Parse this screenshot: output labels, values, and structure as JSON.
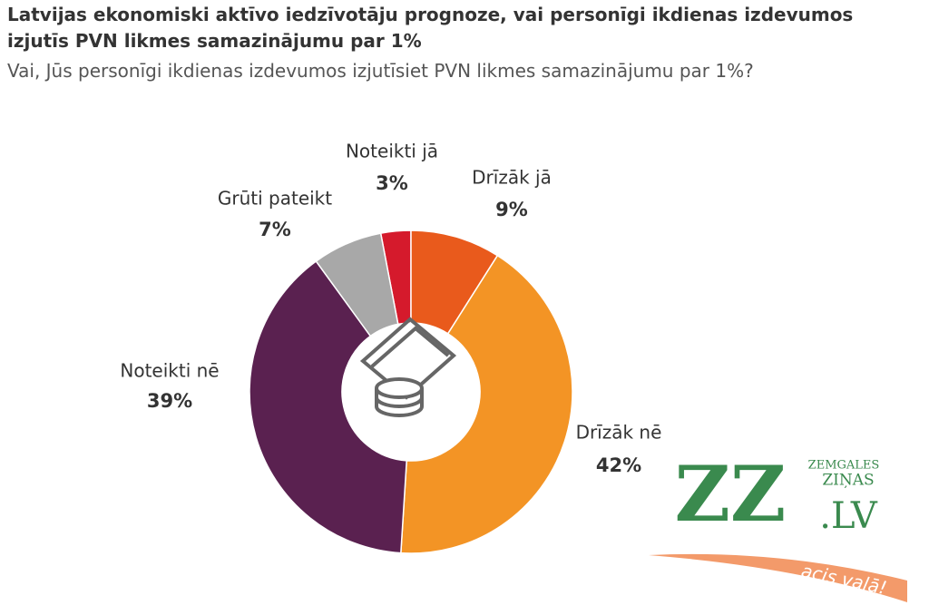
{
  "chart_data": {
    "type": "donut",
    "title": "Latvijas ekonomiski aktīvo iedzīvotāju prognoze, vai personīgi ikdienas izdevumos izjutīs PVN likmes samazinājumu par 1%",
    "subtitle": "Vai, Jūs personīgi ikdienas izdevumos izjutīsiet PVN likmes samazinājumu par 1%?",
    "categories": [
      "Noteikti jā",
      "Drīzāk jā",
      "Drīzāk nē",
      "Noteikti nē",
      "Grūti pateikt"
    ],
    "values": [
      3,
      9,
      42,
      39,
      7
    ],
    "value_labels": [
      "3%",
      "9%",
      "42%",
      "39%",
      "7%"
    ],
    "colors": [
      "#d51a2c",
      "#e95a1c",
      "#f39425",
      "#5a2150",
      "#a8a8a8"
    ]
  },
  "logo": {
    "mark": "ZZ",
    "domain": ".LV",
    "name_top": "ZEMGALES",
    "name_bottom": "ZIŅAS",
    "slogan": "acis vaļā!"
  }
}
